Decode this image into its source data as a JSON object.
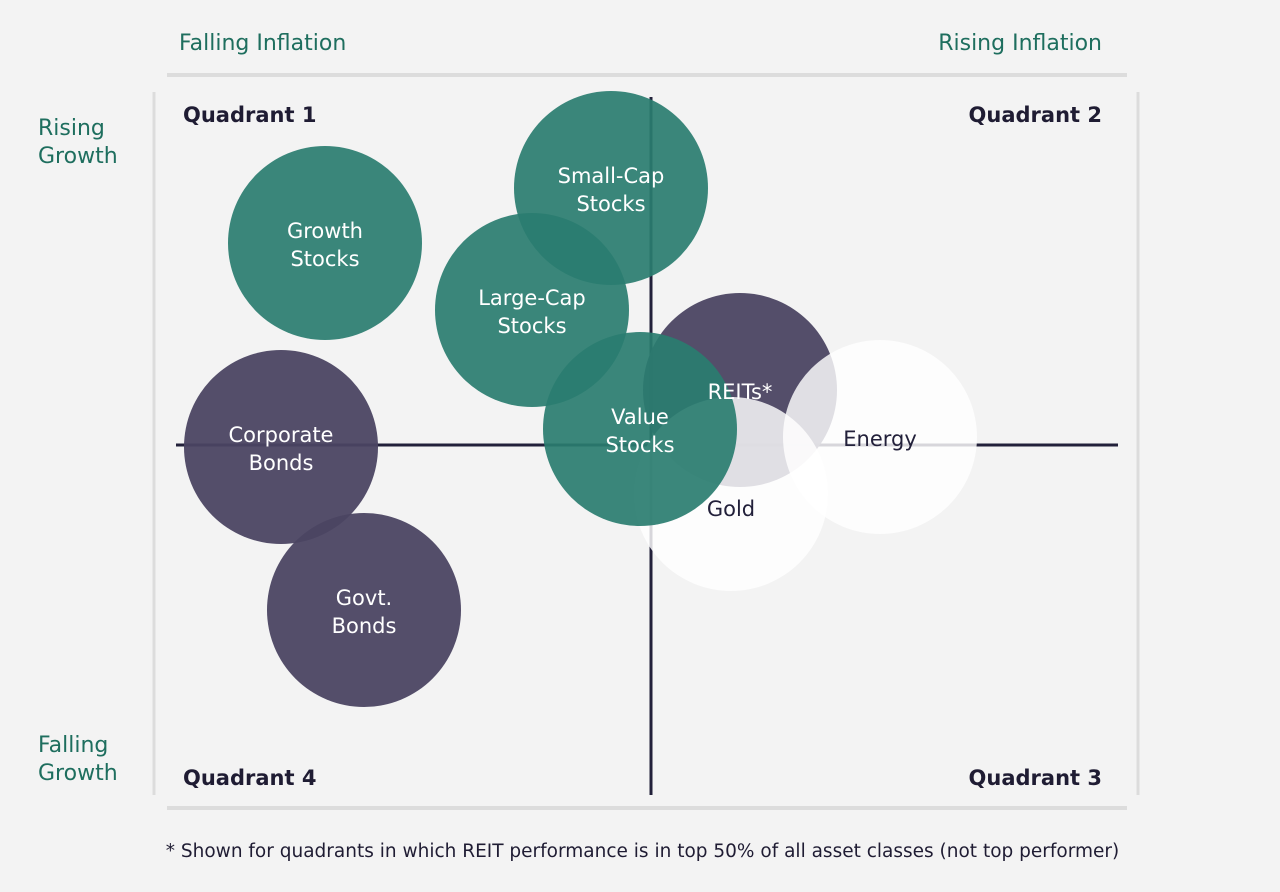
{
  "axes": {
    "left_top": "Falling Inflation",
    "right_top": "Rising Inflation",
    "side_top": "Rising\nGrowth",
    "side_bottom": "Falling\nGrowth"
  },
  "quadrants": {
    "q1": "Quadrant 1",
    "q2": "Quadrant 2",
    "q3": "Quadrant 3",
    "q4": "Quadrant 4"
  },
  "assets": [
    {
      "id": "growth-stocks",
      "label": "Growth\nStocks",
      "class": "equity"
    },
    {
      "id": "small-cap-stocks",
      "label": "Small-Cap\nStocks",
      "class": "equity"
    },
    {
      "id": "large-cap-stocks",
      "label": "Large-Cap\nStocks",
      "class": "equity"
    },
    {
      "id": "reits",
      "label": "REITs*",
      "class": "bond"
    },
    {
      "id": "energy",
      "label": "Energy",
      "class": "commodity"
    },
    {
      "id": "gold",
      "label": "Gold",
      "class": "commodity"
    },
    {
      "id": "value-stocks",
      "label": "Value\nStocks",
      "class": "equity"
    },
    {
      "id": "corporate-bonds",
      "label": "Corporate\nBonds",
      "class": "bond"
    },
    {
      "id": "govt-bonds",
      "label": "Govt.\nBonds",
      "class": "bond"
    }
  ],
  "footnote": "* Shown for quadrants in which REIT performance is in top 50% of all asset classes (not top performer)",
  "colors": {
    "background": "#f3f3f3",
    "accent_text": "#1e6e5e",
    "dark_text": "#1f1c33",
    "equity": "#2a7d70",
    "bond": "#4b4562",
    "commodity": "#ffffff",
    "axis_line": "#22203a",
    "frame_line": "#dcdcdc",
    "label_on_dark": "#ffffff",
    "label_on_light": "#22203a"
  }
}
